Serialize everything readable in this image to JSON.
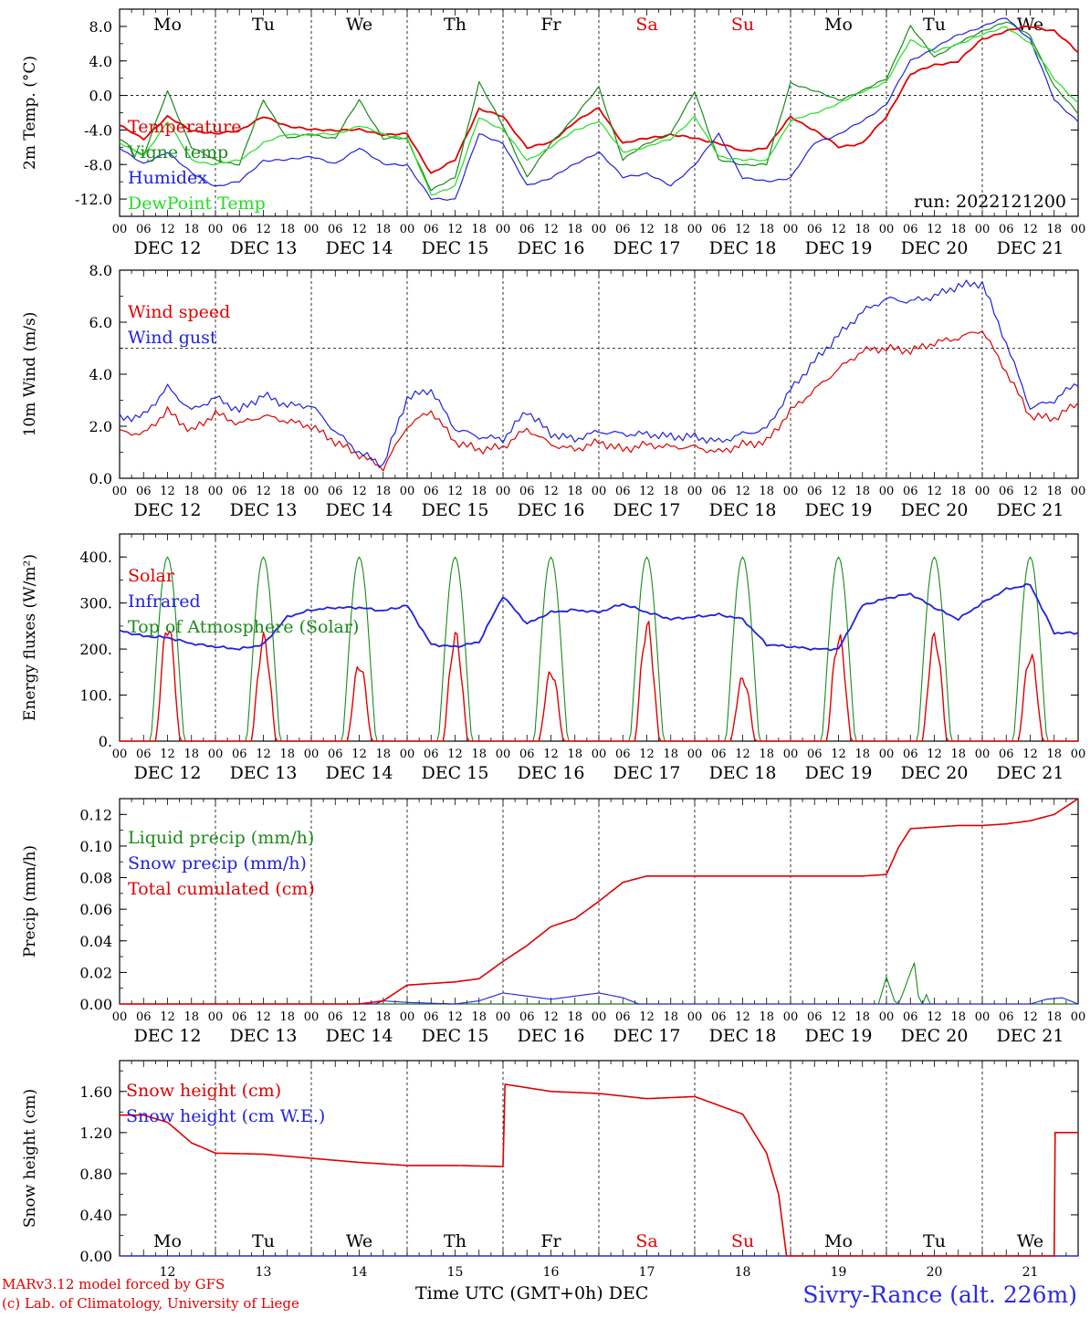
{
  "footer": {
    "model_line": "MARv3.12 model forced by GFS",
    "copyright_line": "(c) Lab. of Climatology, University of Liege",
    "axis_title": "Time UTC (GMT+0h) DEC",
    "station": "Sivry-Rance (alt. 226m)"
  },
  "colors": {
    "red": "#e00000",
    "green": "#1a8a1a",
    "blue": "#2020e0",
    "lightgreen": "#22dd22",
    "weekend": "#e00000"
  },
  "chart_data": [
    {
      "type": "line",
      "ylabel": "2m Temp. (°C)",
      "ylim": [
        -14,
        10
      ],
      "yticks": [
        "8.0",
        "4.0",
        "0.0",
        "-4.0",
        "-8.0",
        "-12.0"
      ],
      "ytick_values": [
        8,
        4,
        0,
        -4,
        -8,
        -12
      ],
      "hline": 0,
      "day_names": [
        "Mo",
        "Tu",
        "We",
        "Th",
        "Fr",
        "Sa",
        "Su",
        "Mo",
        "Tu",
        "We"
      ],
      "day_weekend": [
        false,
        false,
        false,
        false,
        false,
        true,
        true,
        false,
        false,
        false
      ],
      "hour_labels": [
        "00",
        "06",
        "12",
        "18"
      ],
      "date_labels": [
        "DEC 12",
        "DEC 13",
        "DEC 14",
        "DEC 15",
        "DEC 16",
        "DEC 17",
        "DEC 18",
        "DEC 19",
        "DEC 20",
        "DEC 21"
      ],
      "annotation": "run: 2022121200",
      "x": [
        0,
        6,
        12,
        18,
        24,
        30,
        36,
        42,
        48,
        54,
        60,
        66,
        72,
        78,
        84,
        90,
        96,
        102,
        108,
        114,
        120,
        126,
        132,
        138,
        144,
        150,
        156,
        162,
        168,
        174,
        180,
        186,
        192,
        198,
        204,
        210,
        216,
        222,
        228,
        234,
        240
      ],
      "series": [
        {
          "name": "Temperature",
          "color": "red",
          "values": [
            -3.5,
            -5,
            -2.5,
            -4,
            -4.5,
            -4,
            -2.5,
            -3.5,
            -4,
            -4,
            -4,
            -4.5,
            -4.5,
            -9,
            -7.5,
            -1.5,
            -2.5,
            -6,
            -5.5,
            -3,
            -1.5,
            -5.5,
            -5,
            -4.5,
            -5,
            -5.5,
            -6.5,
            -6,
            -2.5,
            -4,
            -6,
            -5.5,
            -2.5,
            2.5,
            3.5,
            4,
            6.5,
            7.5,
            8,
            7.5,
            5
          ]
        },
        {
          "name": "Vigne temp",
          "color": "green",
          "values": [
            -5,
            -7,
            0.5,
            -6,
            -7.5,
            -8,
            -0.5,
            -5,
            -4.5,
            -5,
            -0.5,
            -5,
            -5,
            -11,
            -9.5,
            1.5,
            -3.5,
            -9.5,
            -5.5,
            -2.5,
            1,
            -7.5,
            -5.5,
            -4.5,
            0.5,
            -7.5,
            -8,
            -8,
            1.5,
            0.5,
            -0.5,
            0.5,
            2,
            8,
            4.5,
            6,
            7.5,
            8.5,
            7,
            1,
            -2
          ]
        },
        {
          "name": "Humidex",
          "color": "blue",
          "values": [
            -6,
            -8,
            -6.5,
            -9,
            -10.5,
            -10,
            -7.5,
            -7.5,
            -7,
            -8,
            -6,
            -8,
            -8,
            -12,
            -12,
            -4.5,
            -5.5,
            -10.5,
            -9.5,
            -8,
            -6.5,
            -9.5,
            -9,
            -10.5,
            -8,
            -4.5,
            -9.5,
            -10,
            -9.5,
            -5.5,
            -4.5,
            -3,
            -1,
            4,
            5.5,
            7,
            8,
            9,
            6.5,
            -0.5,
            -3
          ]
        },
        {
          "name": "DewPoint Temp",
          "color": "lightgreen",
          "values": [
            -5.5,
            -7,
            -3,
            -7.5,
            -8,
            -7.5,
            -5.5,
            -4.5,
            -4.5,
            -4.5,
            -3.5,
            -4.5,
            -5,
            -11.5,
            -10.5,
            -2.5,
            -4,
            -7.5,
            -6,
            -4,
            -3,
            -6.5,
            -6,
            -5,
            -2.5,
            -7,
            -7.5,
            -7.5,
            -3,
            -2,
            -1,
            0.5,
            1.5,
            6.5,
            5,
            6,
            7,
            8,
            6,
            2,
            -1
          ]
        }
      ]
    },
    {
      "type": "line",
      "ylabel": "10m Wind (m/s)",
      "ylim": [
        0,
        8
      ],
      "yticks": [
        "8.0",
        "6.0",
        "4.0",
        "2.0",
        "0.0"
      ],
      "ytick_values": [
        8,
        6,
        4,
        2,
        0
      ],
      "hline": 5,
      "hour_labels": [
        "00",
        "06",
        "12",
        "18"
      ],
      "date_labels": [
        "DEC 12",
        "DEC 13",
        "DEC 14",
        "DEC 15",
        "DEC 16",
        "DEC 17",
        "DEC 18",
        "DEC 19",
        "DEC 20",
        "DEC 21"
      ],
      "x": [
        0,
        6,
        12,
        18,
        24,
        30,
        36,
        42,
        48,
        54,
        60,
        66,
        72,
        78,
        84,
        90,
        96,
        102,
        108,
        114,
        120,
        126,
        132,
        138,
        144,
        150,
        156,
        162,
        168,
        174,
        180,
        186,
        192,
        198,
        204,
        210,
        216,
        222,
        228,
        234,
        240
      ],
      "series": [
        {
          "name": "Wind speed",
          "color": "red",
          "values": [
            1.8,
            1.7,
            2.6,
            1.8,
            2.5,
            2.1,
            2.4,
            2.2,
            2.0,
            1.4,
            0.9,
            0.4,
            2.0,
            2.6,
            1.4,
            1.1,
            1.2,
            1.9,
            1.3,
            1.1,
            1.4,
            1.1,
            1.3,
            1.2,
            1.2,
            1.0,
            1.3,
            1.4,
            2.6,
            3.4,
            4.2,
            4.9,
            5.0,
            4.9,
            5.2,
            5.4,
            5.7,
            4.1,
            2.4,
            2.3,
            2.9
          ]
        },
        {
          "name": "Wind gust",
          "color": "blue",
          "values": [
            2.3,
            2.4,
            3.5,
            2.6,
            3.1,
            2.6,
            3.2,
            2.8,
            2.8,
            1.8,
            1.0,
            0.5,
            3.1,
            3.4,
            1.9,
            1.6,
            1.5,
            2.6,
            1.7,
            1.5,
            1.8,
            1.7,
            1.7,
            1.6,
            1.6,
            1.4,
            1.7,
            1.9,
            3.4,
            4.5,
            5.5,
            6.4,
            6.9,
            6.8,
            7.0,
            7.4,
            7.5,
            5.2,
            2.7,
            3.0,
            3.7
          ]
        }
      ]
    },
    {
      "type": "line",
      "ylabel": "Energy fluxes (W/m²)",
      "ylim": [
        0,
        450
      ],
      "yticks": [
        "400.",
        "300.",
        "200.",
        "100.",
        "0."
      ],
      "ytick_values": [
        400,
        300,
        200,
        100,
        0
      ],
      "hour_labels": [
        "00",
        "06",
        "12",
        "18"
      ],
      "date_labels": [
        "DEC 12",
        "DEC 13",
        "DEC 14",
        "DEC 15",
        "DEC 16",
        "DEC 17",
        "DEC 18",
        "DEC 19",
        "DEC 20",
        "DEC 21"
      ],
      "solar_peaks": [
        250,
        220,
        165,
        225,
        150,
        248,
        135,
        222,
        225,
        185
      ],
      "toa_peak": 400,
      "infrared_x": [
        0,
        6,
        12,
        18,
        24,
        30,
        36,
        42,
        48,
        54,
        60,
        66,
        72,
        78,
        84,
        90,
        96,
        102,
        108,
        114,
        120,
        126,
        132,
        138,
        144,
        150,
        156,
        162,
        168,
        174,
        180,
        186,
        192,
        198,
        204,
        210,
        216,
        222,
        228,
        234,
        240
      ],
      "series": [
        {
          "name": "Solar",
          "color": "red"
        },
        {
          "name": "Infrared",
          "color": "blue",
          "values": [
            240,
            228,
            225,
            212,
            205,
            200,
            210,
            270,
            285,
            290,
            290,
            283,
            295,
            210,
            205,
            215,
            315,
            255,
            280,
            285,
            280,
            298,
            280,
            265,
            270,
            275,
            265,
            210,
            205,
            200,
            200,
            295,
            310,
            320,
            290,
            265,
            300,
            330,
            340,
            235,
            235
          ]
        },
        {
          "name": "Top of Atmosphere (Solar)",
          "color": "green"
        }
      ]
    },
    {
      "type": "line",
      "ylabel": "Precip (mm/h)",
      "ylim": [
        0,
        0.13
      ],
      "yticks": [
        "0.12",
        "0.10",
        "0.08",
        "0.06",
        "0.04",
        "0.02",
        "0.00"
      ],
      "ytick_values": [
        0.12,
        0.1,
        0.08,
        0.06,
        0.04,
        0.02,
        0.0
      ],
      "hour_labels": [
        "00",
        "06",
        "12",
        "18"
      ],
      "date_labels": [
        "DEC 12",
        "DEC 13",
        "DEC 14",
        "DEC 15",
        "DEC 16",
        "DEC 17",
        "DEC 18",
        "DEC 19",
        "DEC 20",
        "DEC 21"
      ],
      "series": [
        {
          "name": "Liquid precip (mm/h)",
          "color": "green",
          "x": [
            0,
            190,
            192,
            194,
            195,
            196,
            198,
            199,
            200,
            201,
            202,
            203,
            240
          ],
          "values": [
            0,
            0,
            0.017,
            0.002,
            0,
            0.006,
            0.02,
            0.026,
            0.005,
            0,
            0.006,
            0,
            0
          ]
        },
        {
          "name": "Snow precip (mm/h)",
          "color": "blue",
          "x": [
            0,
            60,
            64,
            66,
            72,
            84,
            90,
            96,
            102,
            108,
            114,
            120,
            126,
            130,
            190,
            228,
            232,
            236,
            240
          ],
          "values": [
            0,
            0,
            0.0,
            0.002,
            0.001,
            0.0,
            0.002,
            0.007,
            0.005,
            0.003,
            0.005,
            0.007,
            0.004,
            0,
            0,
            0,
            0.003,
            0.004,
            0
          ]
        },
        {
          "name": "Total cumulated (cm)",
          "color": "red",
          "x": [
            0,
            60,
            66,
            72,
            78,
            84,
            90,
            96,
            102,
            108,
            114,
            120,
            126,
            132,
            138,
            144,
            150,
            156,
            162,
            168,
            174,
            180,
            186,
            192,
            195,
            198,
            204,
            210,
            216,
            222,
            228,
            234,
            240
          ],
          "values": [
            0,
            0,
            0.002,
            0.012,
            0.013,
            0.014,
            0.016,
            0.027,
            0.037,
            0.049,
            0.054,
            0.065,
            0.077,
            0.081,
            0.081,
            0.081,
            0.081,
            0.081,
            0.081,
            0.081,
            0.081,
            0.081,
            0.081,
            0.082,
            0.099,
            0.111,
            0.112,
            0.113,
            0.113,
            0.114,
            0.116,
            0.12,
            0.13
          ]
        }
      ]
    },
    {
      "type": "line",
      "ylabel": "Snow height (cm)",
      "ylim": [
        0,
        1.9
      ],
      "yticks": [
        "1.60",
        "1.20",
        "0.80",
        "0.40",
        "0.00"
      ],
      "ytick_values": [
        1.6,
        1.2,
        0.8,
        0.4,
        0.0
      ],
      "day_names": [
        "Mo",
        "Tu",
        "We",
        "Th",
        "Fr",
        "Sa",
        "Su",
        "Mo",
        "Tu",
        "We"
      ],
      "day_weekend": [
        false,
        false,
        false,
        false,
        false,
        true,
        true,
        false,
        false,
        false
      ],
      "day_numbers": [
        "12",
        "13",
        "14",
        "15",
        "16",
        "17",
        "18",
        "19",
        "20",
        "21"
      ],
      "series": [
        {
          "name": "Snow height (cm)",
          "color": "red",
          "x": [
            0,
            6,
            12,
            18,
            24,
            36,
            48,
            60,
            72,
            84,
            96,
            96.5,
            108,
            120,
            132,
            144,
            156,
            162,
            165,
            167,
            168,
            168.2,
            234,
            234.1,
            240
          ],
          "values": [
            1.37,
            1.37,
            1.3,
            1.1,
            1.0,
            0.99,
            0.95,
            0.91,
            0.88,
            0.88,
            0.87,
            1.67,
            1.6,
            1.58,
            1.53,
            1.55,
            1.38,
            1.0,
            0.6,
            0.0,
            0.0,
            0.0,
            0.0,
            1.2,
            1.2
          ]
        },
        {
          "name": "Snow height (cm W.E.)",
          "color": "blue",
          "x": [
            0,
            240
          ],
          "values": [
            0,
            0
          ]
        }
      ]
    }
  ]
}
